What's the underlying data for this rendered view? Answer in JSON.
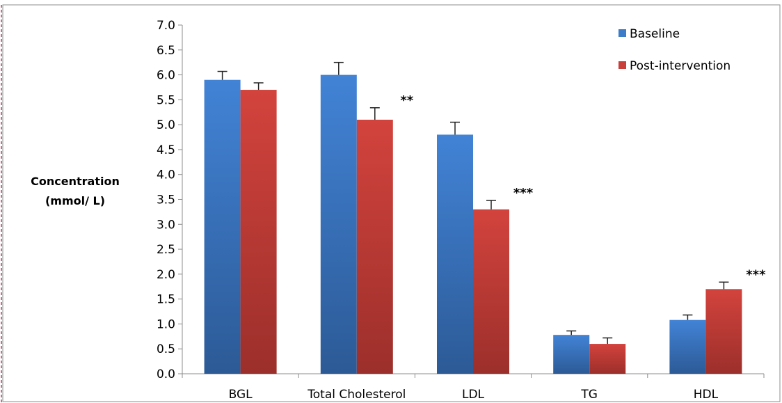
{
  "chart_data": {
    "type": "bar",
    "categories": [
      "BGL",
      "Total Cholesterol",
      "LDL",
      "TG",
      "HDL"
    ],
    "series": [
      {
        "name": "Baseline",
        "color": "#3d7cc9",
        "values": [
          5.9,
          6.0,
          4.8,
          0.78,
          1.08
        ],
        "errors": [
          0.17,
          0.25,
          0.25,
          0.08,
          0.1
        ]
      },
      {
        "name": "Post-intervention",
        "color": "#c9403b",
        "values": [
          5.7,
          5.1,
          3.3,
          0.6,
          1.7
        ],
        "errors": [
          0.14,
          0.24,
          0.18,
          0.12,
          0.14
        ]
      }
    ],
    "significance": [
      "",
      "**",
      "***",
      "",
      "***"
    ],
    "ylabel_lines": [
      "Concentration",
      "(mmol/ L)"
    ],
    "xlabel": "",
    "title": "",
    "ylim": [
      0,
      7
    ],
    "y_ticks": [
      "0.0",
      "0.5",
      "1.0",
      "1.5",
      "2.0",
      "2.5",
      "3.0",
      "3.5",
      "4.0",
      "4.5",
      "5.0",
      "5.5",
      "6.0",
      "6.5",
      "7.0"
    ],
    "grid": false,
    "legend_position": "top-right"
  }
}
